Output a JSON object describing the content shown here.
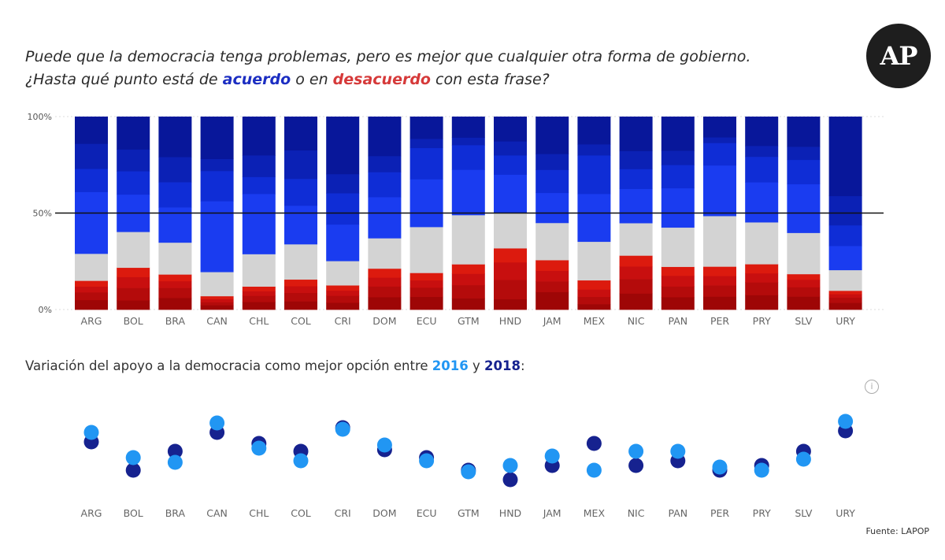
{
  "header": {
    "question_line1": "Puede que la democracia tenga problemas, pero es mejor que cualquier otra forma de gobierno.",
    "question_line2_pre": "¿Hasta qué punto está de ",
    "agree_word": "acuerdo",
    "question_line2_mid": " o en ",
    "disagree_word": "desacuerdo",
    "question_line2_post": " con esta frase?",
    "logo": "AP"
  },
  "section2": {
    "title_pre": "Variación del apoyo a la democracia como mejor opción entre ",
    "year_a": "2016",
    "title_mid": " y ",
    "year_b": "2018",
    "title_post": ":",
    "info_symbol": "i"
  },
  "source": "Fuente: LAPOP",
  "colors": {
    "disagree": [
      "#9e0606",
      "#b40b0b",
      "#c80f0f",
      "#dc1a0e"
    ],
    "neutral": "#d3d3d3",
    "agree": [
      "#1a3cf0",
      "#0f2dd6",
      "#0b21b5",
      "#08179a"
    ],
    "dot2016": "#2196f3",
    "dot2018": "#16228f"
  },
  "chart_data": [
    {
      "type": "bar",
      "stacked": true,
      "categories": [
        "ARG",
        "BOL",
        "BRA",
        "CAN",
        "CHL",
        "COL",
        "CRI",
        "DOM",
        "ECU",
        "GTM",
        "HND",
        "JAM",
        "MEX",
        "NIC",
        "PAN",
        "PER",
        "PRY",
        "SLV",
        "URY"
      ],
      "yticks": [
        "0%",
        "50%",
        "100%"
      ],
      "ylim": [
        0,
        100
      ],
      "reference_line": 50,
      "stacks": [
        [
          5,
          4,
          3,
          3,
          14,
          32,
          12,
          13,
          14
        ],
        [
          6,
          8,
          7,
          6,
          23,
          24,
          15,
          14,
          21
        ],
        [
          7,
          6,
          4,
          4,
          19,
          21,
          15,
          15,
          24
        ],
        [
          3,
          2,
          2,
          2,
          16,
          47,
          20,
          8,
          28
        ],
        [
          5,
          4,
          3,
          3,
          21,
          39,
          11,
          14,
          25
        ],
        [
          5,
          5,
          4,
          4,
          21,
          23,
          16,
          17,
          20
        ],
        [
          4,
          4,
          3,
          3,
          14,
          21,
          18,
          11,
          33
        ],
        [
          7,
          6,
          5,
          5,
          17,
          23,
          14,
          9,
          22
        ],
        [
          7,
          5,
          4,
          4,
          25,
          26,
          17,
          5,
          12
        ],
        [
          6,
          7,
          6,
          5,
          26,
          24,
          13,
          4,
          11
        ],
        [
          6,
          11,
          10,
          8,
          20,
          22,
          11,
          8,
          14
        ],
        [
          10,
          6,
          6,
          6,
          21,
          17,
          13,
          9,
          21
        ],
        [
          3,
          4,
          4,
          5,
          21,
          26,
          21,
          6,
          15
        ],
        [
          9,
          8,
          7,
          6,
          18,
          19,
          11,
          10,
          19
        ],
        [
          7,
          6,
          6,
          5,
          22,
          22,
          13,
          8,
          19
        ],
        [
          7,
          6,
          5,
          5,
          27,
          27,
          12,
          3,
          11
        ],
        [
          8,
          7,
          5,
          5,
          23,
          22,
          14,
          6,
          16
        ],
        [
          7,
          5,
          4,
          3,
          22,
          26,
          13,
          7,
          16
        ],
        [
          4,
          3,
          2,
          2,
          12,
          14,
          12,
          17,
          46
        ]
      ]
    },
    {
      "type": "scatter",
      "categories": [
        "ARG",
        "BOL",
        "BRA",
        "CAN",
        "CHL",
        "COL",
        "CRI",
        "DOM",
        "ECU",
        "GTM",
        "HND",
        "JAM",
        "MEX",
        "NIC",
        "PAN",
        "PER",
        "PRY",
        "SLV",
        "URY"
      ],
      "series": [
        {
          "name": "2016",
          "values": [
            78,
            62,
            59,
            84,
            68,
            60,
            80,
            70,
            60,
            53,
            57,
            63,
            54,
            66,
            66,
            56,
            54,
            61,
            85
          ]
        },
        {
          "name": "2018",
          "values": [
            72,
            54,
            66,
            78,
            71,
            66,
            81,
            67,
            62,
            54,
            48,
            57,
            71,
            57,
            60,
            54,
            57,
            66,
            79
          ]
        }
      ],
      "ylim": [
        40,
        95
      ],
      "grid": false
    }
  ]
}
